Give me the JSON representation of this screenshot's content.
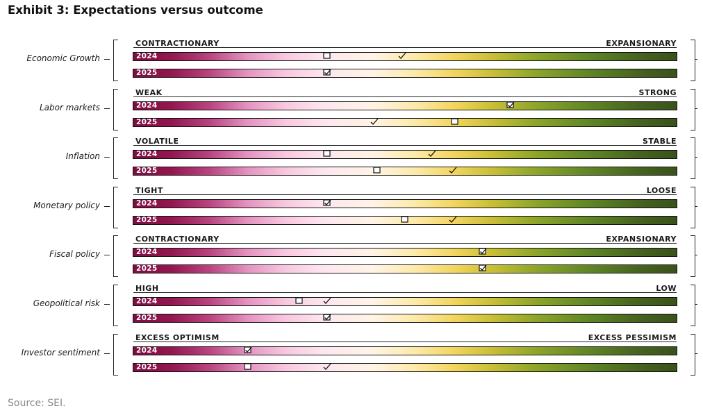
{
  "title": "Exhibit 3: Expectations versus outcome",
  "source": "Source: SEI.",
  "marker_legend": {
    "box": "box-icon",
    "check": "check-icon",
    "both": "checked-box-icon"
  },
  "chart_data": {
    "type": "table",
    "scale": [
      0,
      1
    ],
    "rows": [
      {
        "category": "Economic Growth",
        "left_label": "CONTRACTIONARY",
        "right_label": "EXPANSIONARY",
        "bars": [
          {
            "year": "2024",
            "expectation": 0.358,
            "outcome": 0.495
          },
          {
            "year": "2025",
            "expectation": 0.358,
            "outcome": 0.358
          }
        ]
      },
      {
        "category": "Labor markets",
        "left_label": "WEAK",
        "right_label": "STRONG",
        "bars": [
          {
            "year": "2024",
            "expectation": 0.694,
            "outcome": 0.694
          },
          {
            "year": "2025",
            "expectation": 0.593,
            "outcome": 0.444
          }
        ]
      },
      {
        "category": "Inflation",
        "left_label": "VOLATILE",
        "right_label": "STABLE",
        "bars": [
          {
            "year": "2024",
            "expectation": 0.358,
            "outcome": 0.551
          },
          {
            "year": "2025",
            "expectation": 0.45,
            "outcome": 0.589
          }
        ]
      },
      {
        "category": "Monetary policy",
        "left_label": "TIGHT",
        "right_label": "LOOSE",
        "bars": [
          {
            "year": "2024",
            "expectation": 0.358,
            "outcome": 0.358
          },
          {
            "year": "2025",
            "expectation": 0.501,
            "outcome": 0.589
          }
        ]
      },
      {
        "category": "Fiscal policy",
        "left_label": "CONTRACTIONARY",
        "right_label": "EXPANSIONARY",
        "bars": [
          {
            "year": "2024",
            "expectation": 0.643,
            "outcome": 0.643
          },
          {
            "year": "2025",
            "expectation": 0.643,
            "outcome": 0.643
          }
        ]
      },
      {
        "category": "Geopolitical risk",
        "left_label": "HIGH",
        "right_label": "LOW",
        "bars": [
          {
            "year": "2024",
            "expectation": 0.307,
            "outcome": 0.358
          },
          {
            "year": "2025",
            "expectation": 0.358,
            "outcome": 0.358
          }
        ]
      },
      {
        "category": "Investor sentiment",
        "left_label": "EXCESS OPTIMISM",
        "right_label": "EXCESS PESSIMISM",
        "bars": [
          {
            "year": "2024",
            "expectation": 0.213,
            "outcome": 0.213
          },
          {
            "year": "2025",
            "expectation": 0.213,
            "outcome": 0.358
          }
        ]
      }
    ]
  }
}
